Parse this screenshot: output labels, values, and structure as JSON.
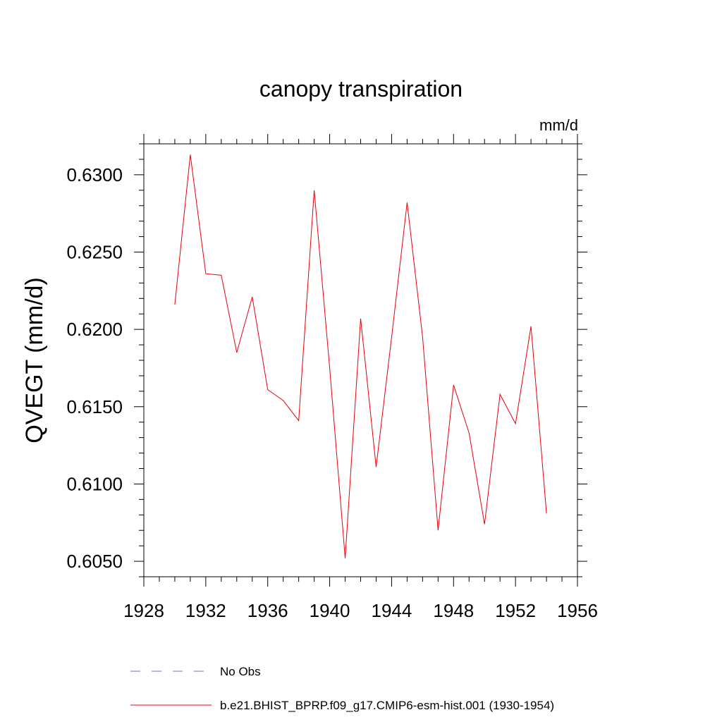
{
  "chart_data": {
    "type": "line",
    "title": "canopy transpiration",
    "units": "mm/d",
    "ylabel": "QVEGT  (mm/d)",
    "xlabel": "",
    "xlim": [
      1928,
      1956
    ],
    "ylim": [
      0.604,
      0.632
    ],
    "xticks": [
      1928,
      1932,
      1936,
      1940,
      1944,
      1948,
      1952,
      1956
    ],
    "yticks": [
      0.605,
      0.61,
      0.615,
      0.62,
      0.625,
      0.63
    ],
    "ytick_labels": [
      "0.6050",
      "0.6100",
      "0.6150",
      "0.6200",
      "0.6250",
      "0.6300"
    ],
    "xminor_step": 1,
    "yminor_step": 0.001,
    "grid": false,
    "legend_position": "bottom",
    "series": [
      {
        "name": "b.e21.BHIST_BPRP.f09_g17.CMIP6-esm-hist.001 (1930-1954)",
        "color": "#e8000b",
        "style": "solid",
        "x": [
          1930,
          1931,
          1932,
          1933,
          1934,
          1935,
          1936,
          1937,
          1938,
          1939,
          1940,
          1941,
          1942,
          1943,
          1944,
          1945,
          1946,
          1947,
          1948,
          1949,
          1950,
          1951,
          1952,
          1953,
          1954
        ],
        "y": [
          0.6216,
          0.6313,
          0.6236,
          0.6235,
          0.6185,
          0.6221,
          0.6161,
          0.6154,
          0.6141,
          0.629,
          0.6175,
          0.6052,
          0.6207,
          0.6111,
          0.6195,
          0.6282,
          0.6195,
          0.607,
          0.6164,
          0.6133,
          0.6074,
          0.6158,
          0.6139,
          0.6202,
          0.6081
        ]
      }
    ],
    "legend": [
      {
        "label": "No Obs",
        "color": "#7b68c8",
        "style": "dashed"
      },
      {
        "label": "b.e21.BHIST_BPRP.f09_g17.CMIP6-esm-hist.001 (1930-1954)",
        "color": "#e8000b",
        "style": "solid"
      }
    ]
  }
}
